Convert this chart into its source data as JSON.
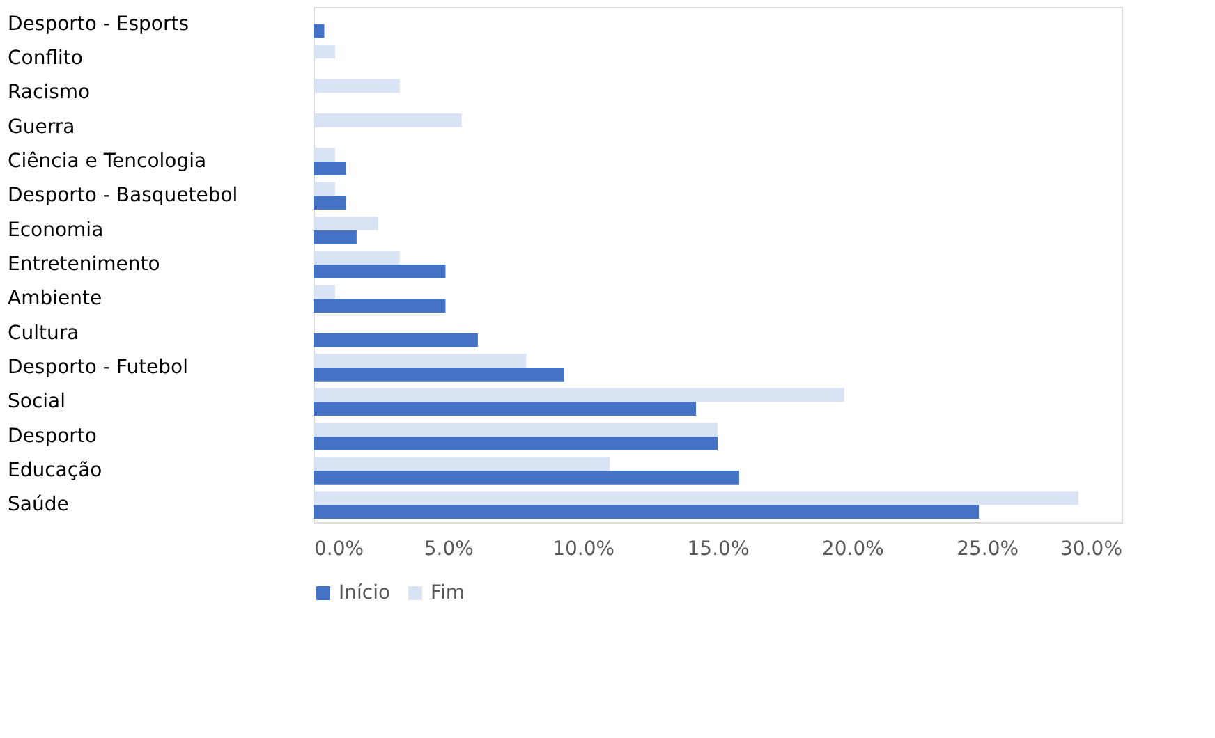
{
  "chart_data": {
    "type": "bar",
    "orientation": "horizontal",
    "categories": [
      "Desporto - Esports",
      "Conflito",
      "Racismo",
      "Guerra",
      "Ciência e Tencologia",
      "Desporto - Basquetebol",
      "Economia",
      "Entretenimento",
      "Ambiente",
      "Cultura",
      "Desporto - Futebol",
      "Social",
      "Desporto",
      "Educação",
      "Saúde"
    ],
    "series": [
      {
        "name": "Início",
        "color": "#4472c4",
        "values": [
          0.4,
          null,
          null,
          null,
          1.2,
          1.2,
          1.6,
          4.9,
          4.9,
          6.1,
          9.3,
          14.2,
          15.0,
          15.8,
          24.7
        ]
      },
      {
        "name": "Fim",
        "color": "#dae3f3",
        "values": [
          null,
          0.8,
          3.2,
          5.5,
          0.8,
          0.8,
          2.4,
          3.2,
          0.8,
          null,
          7.9,
          19.7,
          15.0,
          11.0,
          28.4
        ]
      }
    ],
    "xlim": [
      0,
      30
    ],
    "xticks": [
      {
        "value": 0,
        "label": "0.0%"
      },
      {
        "value": 5,
        "label": "5.0%"
      },
      {
        "value": 10,
        "label": "10.0%"
      },
      {
        "value": 15,
        "label": "15.0%"
      },
      {
        "value": 20,
        "label": "20.0%"
      },
      {
        "value": 25,
        "label": "25.0%"
      },
      {
        "value": 30,
        "label": "30.0%"
      }
    ],
    "grid": false,
    "legend": "bottom"
  }
}
